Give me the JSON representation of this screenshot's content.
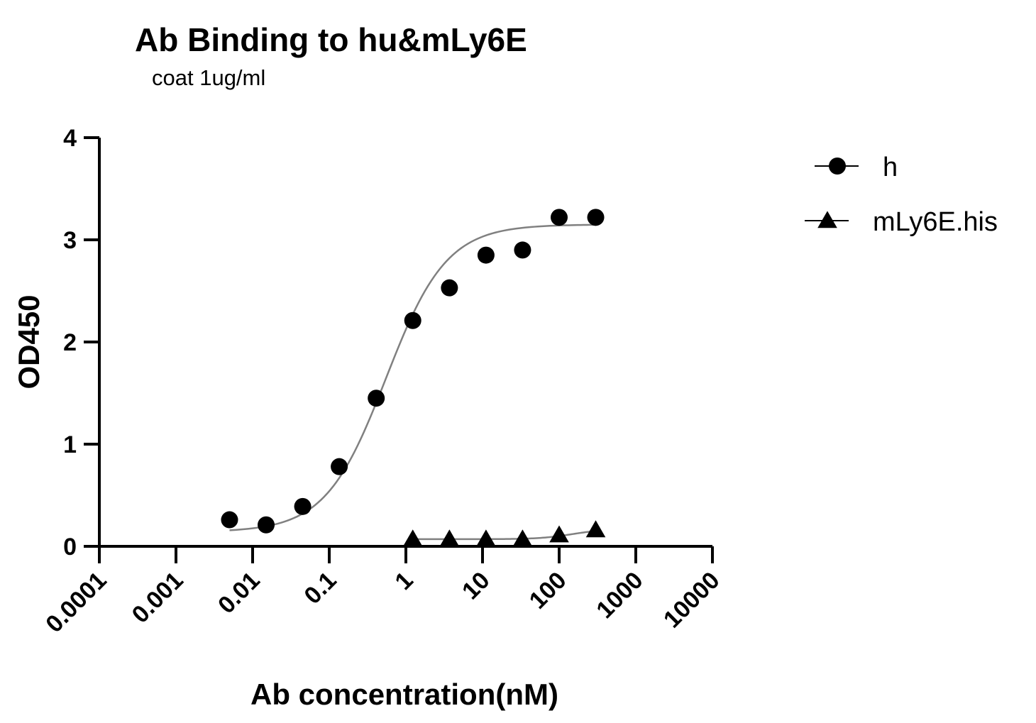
{
  "chart_data": {
    "type": "scatter",
    "title": "Ab Binding to hu&mLy6E",
    "subtitle": "coat 1ug/ml",
    "xlabel": "Ab concentration(nM)",
    "ylabel": "OD450",
    "x_scale": "log",
    "xlim": [
      0.0001,
      10000
    ],
    "ylim": [
      0,
      4
    ],
    "x_ticks": [
      "0.0001",
      "0.001",
      "0.01",
      "0.1",
      "1",
      "10",
      "100",
      "1000",
      "10000"
    ],
    "x_tick_values": [
      0.0001,
      0.001,
      0.01,
      0.1,
      1,
      10,
      100,
      1000,
      10000
    ],
    "y_ticks": [
      "0",
      "1",
      "2",
      "3",
      "4"
    ],
    "y_tick_values": [
      0,
      1,
      2,
      3,
      4
    ],
    "grid": false,
    "legend_position": "right",
    "series": [
      {
        "name": "h",
        "marker": "circle",
        "color": "#000000",
        "x": [
          0.005,
          0.015,
          0.045,
          0.135,
          0.41,
          1.23,
          3.7,
          11.1,
          33.3,
          100,
          300
        ],
        "y": [
          0.26,
          0.21,
          0.39,
          0.78,
          1.45,
          2.21,
          2.53,
          2.85,
          2.9,
          3.22,
          3.22
        ],
        "fit": {
          "bottom": 0.14,
          "top": 3.15,
          "ec50": 0.55,
          "hill": 1.1,
          "x_range": [
            0.005,
            300
          ]
        }
      },
      {
        "name": "mLy6E.his",
        "marker": "triangle",
        "color": "#000000",
        "x": [
          1.23,
          3.7,
          11.1,
          33.3,
          100,
          300
        ],
        "y": [
          0.07,
          0.07,
          0.07,
          0.07,
          0.11,
          0.16
        ],
        "fit": {
          "bottom": 0.07,
          "top": 0.17,
          "ec50": 150,
          "hill": 2.0,
          "x_range": [
            1.23,
            300
          ]
        }
      }
    ]
  }
}
